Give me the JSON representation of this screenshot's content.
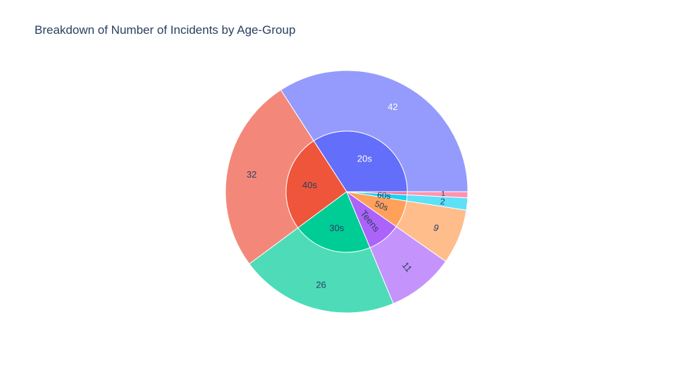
{
  "chart_data": {
    "type": "pie",
    "variant": "sunburst",
    "title": "Breakdown of Number of Incidents by Age-Group",
    "start_angle_deg": 0,
    "direction": "counterclockwise",
    "inner_ring": [
      {
        "label": "20s",
        "value": 42,
        "color": "#636efa",
        "text_color": "#ffffff"
      },
      {
        "label": "40s",
        "value": 32,
        "color": "#ef553b",
        "text_color": "#2a3f5f"
      },
      {
        "label": "30s",
        "value": 26,
        "color": "#00cc96",
        "text_color": "#2a3f5f"
      },
      {
        "label": "Teens",
        "value": 11,
        "color": "#ab63fa",
        "text_color": "#2a3f5f"
      },
      {
        "label": "50s",
        "value": 9,
        "color": "#ffa15a",
        "text_color": "#2a3f5f"
      },
      {
        "label": "60s",
        "value": 2,
        "color": "#19d3f3",
        "text_color": "#2a3f5f"
      },
      {
        "label": "",
        "value": 1,
        "color": "#ff6692",
        "text_color": "#2a3f5f"
      }
    ],
    "outer_ring": [
      {
        "label": "42",
        "value": 42,
        "color": "#959bfc",
        "text_color": "#ffffff"
      },
      {
        "label": "32",
        "value": 32,
        "color": "#f3887a",
        "text_color": "#2a3f5f"
      },
      {
        "label": "26",
        "value": 26,
        "color": "#4ddcb7",
        "text_color": "#2a3f5f"
      },
      {
        "label": "11",
        "value": 11,
        "color": "#c593fc",
        "text_color": "#2a3f5f"
      },
      {
        "label": "9",
        "value": 9,
        "color": "#ffbd8c",
        "text_color": "#2a3f5f"
      },
      {
        "label": "2",
        "value": 2,
        "color": "#5ee0f7",
        "text_color": "#2a3f5f"
      },
      {
        "label": "1",
        "value": 1,
        "color": "#ff94b3",
        "text_color": "#2a3f5f"
      }
    ]
  }
}
